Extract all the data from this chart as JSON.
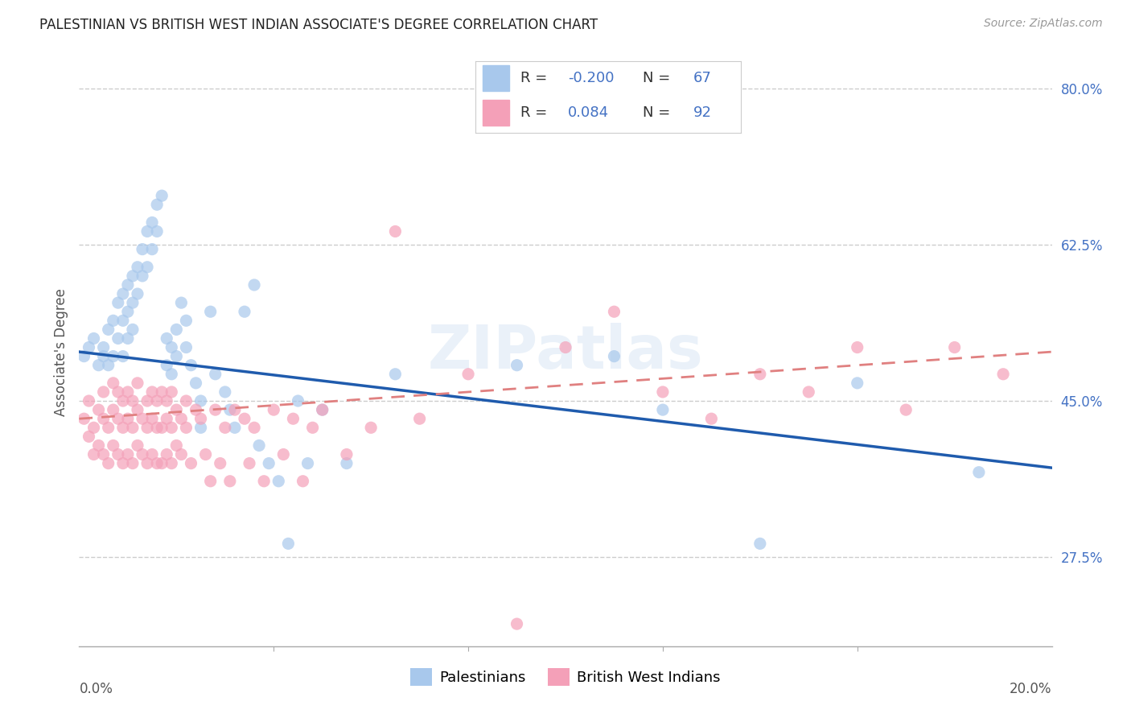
{
  "title": "PALESTINIAN VS BRITISH WEST INDIAN ASSOCIATE'S DEGREE CORRELATION CHART",
  "source": "Source: ZipAtlas.com",
  "ylabel": "Associate's Degree",
  "watermark": "ZIPatlas",
  "xlim": [
    0.0,
    0.2
  ],
  "ylim": [
    0.175,
    0.835
  ],
  "yticks": [
    0.275,
    0.45,
    0.625,
    0.8
  ],
  "ytick_labels": [
    "27.5%",
    "45.0%",
    "62.5%",
    "80.0%"
  ],
  "color_blue": "#A8C8EC",
  "color_pink": "#F4A0B8",
  "line_blue": "#1F5BAD",
  "line_pink": "#E08080",
  "background": "#ffffff",
  "grid_color": "#cccccc",
  "palestinians_x": [
    0.001,
    0.002,
    0.003,
    0.004,
    0.005,
    0.005,
    0.006,
    0.006,
    0.007,
    0.007,
    0.008,
    0.008,
    0.009,
    0.009,
    0.009,
    0.01,
    0.01,
    0.01,
    0.011,
    0.011,
    0.011,
    0.012,
    0.012,
    0.013,
    0.013,
    0.014,
    0.014,
    0.015,
    0.015,
    0.016,
    0.016,
    0.017,
    0.018,
    0.018,
    0.019,
    0.019,
    0.02,
    0.02,
    0.021,
    0.022,
    0.022,
    0.023,
    0.024,
    0.025,
    0.025,
    0.027,
    0.028,
    0.03,
    0.031,
    0.032,
    0.034,
    0.036,
    0.037,
    0.039,
    0.041,
    0.043,
    0.045,
    0.047,
    0.05,
    0.055,
    0.065,
    0.09,
    0.11,
    0.12,
    0.14,
    0.16,
    0.185
  ],
  "palestinians_y": [
    0.5,
    0.51,
    0.52,
    0.49,
    0.51,
    0.5,
    0.53,
    0.49,
    0.54,
    0.5,
    0.56,
    0.52,
    0.57,
    0.54,
    0.5,
    0.58,
    0.55,
    0.52,
    0.59,
    0.56,
    0.53,
    0.6,
    0.57,
    0.62,
    0.59,
    0.64,
    0.6,
    0.65,
    0.62,
    0.67,
    0.64,
    0.68,
    0.52,
    0.49,
    0.51,
    0.48,
    0.5,
    0.53,
    0.56,
    0.54,
    0.51,
    0.49,
    0.47,
    0.45,
    0.42,
    0.55,
    0.48,
    0.46,
    0.44,
    0.42,
    0.55,
    0.58,
    0.4,
    0.38,
    0.36,
    0.29,
    0.45,
    0.38,
    0.44,
    0.38,
    0.48,
    0.49,
    0.5,
    0.44,
    0.29,
    0.47,
    0.37
  ],
  "bwi_x": [
    0.001,
    0.002,
    0.002,
    0.003,
    0.003,
    0.004,
    0.004,
    0.005,
    0.005,
    0.005,
    0.006,
    0.006,
    0.007,
    0.007,
    0.007,
    0.008,
    0.008,
    0.008,
    0.009,
    0.009,
    0.009,
    0.01,
    0.01,
    0.01,
    0.011,
    0.011,
    0.011,
    0.012,
    0.012,
    0.012,
    0.013,
    0.013,
    0.014,
    0.014,
    0.014,
    0.015,
    0.015,
    0.015,
    0.016,
    0.016,
    0.016,
    0.017,
    0.017,
    0.017,
    0.018,
    0.018,
    0.018,
    0.019,
    0.019,
    0.019,
    0.02,
    0.02,
    0.021,
    0.021,
    0.022,
    0.022,
    0.023,
    0.024,
    0.025,
    0.026,
    0.027,
    0.028,
    0.029,
    0.03,
    0.031,
    0.032,
    0.034,
    0.035,
    0.036,
    0.038,
    0.04,
    0.042,
    0.044,
    0.046,
    0.048,
    0.05,
    0.055,
    0.06,
    0.065,
    0.07,
    0.08,
    0.09,
    0.1,
    0.11,
    0.12,
    0.13,
    0.14,
    0.15,
    0.16,
    0.17,
    0.18,
    0.19
  ],
  "bwi_y": [
    0.43,
    0.41,
    0.45,
    0.39,
    0.42,
    0.44,
    0.4,
    0.43,
    0.39,
    0.46,
    0.42,
    0.38,
    0.44,
    0.4,
    0.47,
    0.43,
    0.39,
    0.46,
    0.42,
    0.38,
    0.45,
    0.43,
    0.39,
    0.46,
    0.42,
    0.38,
    0.45,
    0.44,
    0.4,
    0.47,
    0.43,
    0.39,
    0.45,
    0.42,
    0.38,
    0.46,
    0.43,
    0.39,
    0.45,
    0.42,
    0.38,
    0.46,
    0.42,
    0.38,
    0.45,
    0.43,
    0.39,
    0.46,
    0.42,
    0.38,
    0.44,
    0.4,
    0.43,
    0.39,
    0.45,
    0.42,
    0.38,
    0.44,
    0.43,
    0.39,
    0.36,
    0.44,
    0.38,
    0.42,
    0.36,
    0.44,
    0.43,
    0.38,
    0.42,
    0.36,
    0.44,
    0.39,
    0.43,
    0.36,
    0.42,
    0.44,
    0.39,
    0.42,
    0.64,
    0.43,
    0.48,
    0.2,
    0.51,
    0.55,
    0.46,
    0.43,
    0.48,
    0.46,
    0.51,
    0.44,
    0.51,
    0.48
  ],
  "pal_line_x0": 0.0,
  "pal_line_y0": 0.505,
  "pal_line_x1": 0.2,
  "pal_line_y1": 0.375,
  "bwi_line_x0": 0.0,
  "bwi_line_y0": 0.43,
  "bwi_line_x1": 0.2,
  "bwi_line_y1": 0.505
}
